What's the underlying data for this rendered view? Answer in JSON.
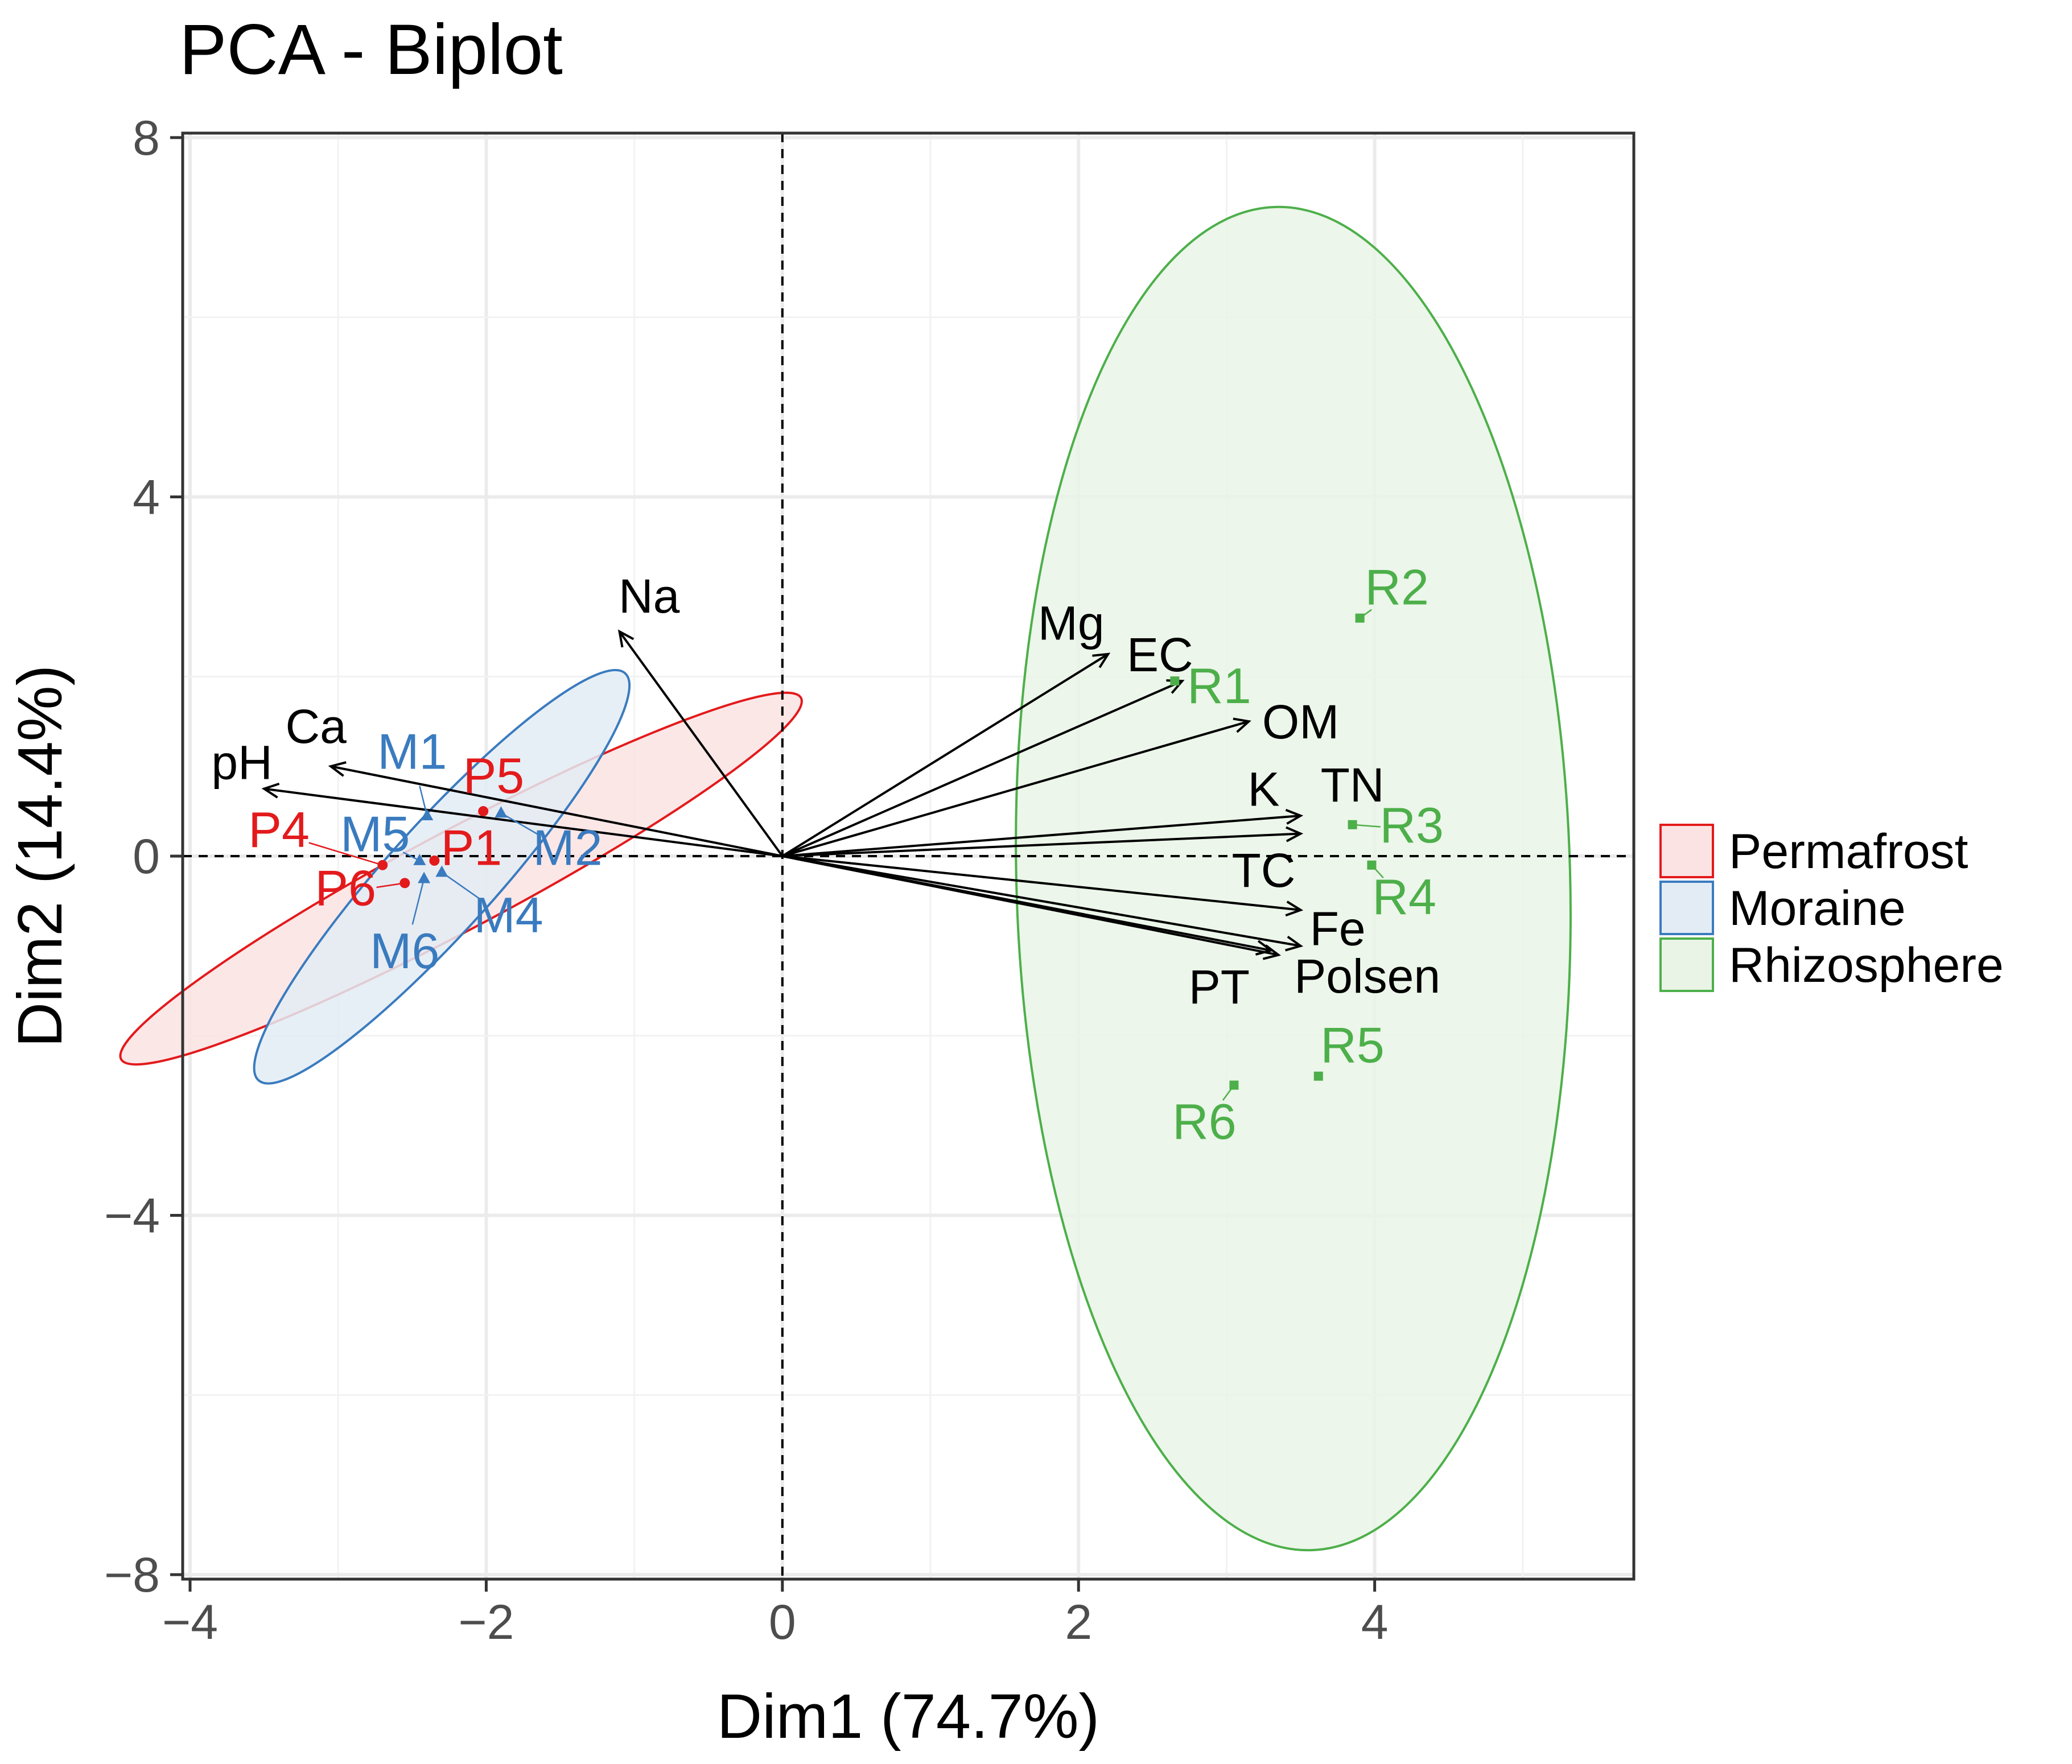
{
  "chart_data": {
    "type": "scatter",
    "subtype": "pca-biplot",
    "title": "PCA - Biplot",
    "xlabel": "Dim1 (74.7%)",
    "ylabel": "Dim2 (14.4%)",
    "xlim": [
      -4.05,
      5.75
    ],
    "ylim": [
      -8.05,
      8.05
    ],
    "x_ticks": [
      -4,
      -2,
      0,
      2,
      4
    ],
    "y_ticks": [
      -8,
      -4,
      0,
      4,
      8
    ],
    "x_tick_labels": [
      "−4",
      "−2",
      "0",
      "2",
      "4"
    ],
    "y_tick_labels": [
      "−8",
      "−4",
      "0",
      "4",
      "8"
    ],
    "grid": true,
    "legend_position": "right",
    "groups": [
      {
        "name": "Permafrost",
        "color": "#e31a1c",
        "fill": "#fbe3e3",
        "marker": "circle",
        "ellipse": {
          "cx": -2.17,
          "cy": -0.25,
          "rx": 2.6,
          "ry": 0.55,
          "angle_deg": 28
        },
        "points": [
          {
            "label": "P1",
            "x": -2.35,
            "y": -0.05,
            "lx": -2.1,
            "ly": 0.05
          },
          {
            "label": "P4",
            "x": -2.7,
            "y": -0.1,
            "lx": -3.4,
            "ly": 0.25
          },
          {
            "label": "P5",
            "x": -2.02,
            "y": 0.5,
            "lx": -1.95,
            "ly": 0.85
          },
          {
            "label": "P6",
            "x": -2.55,
            "y": -0.3,
            "lx": -2.95,
            "ly": -0.4
          }
        ]
      },
      {
        "name": "Moraine",
        "color": "#3a7bbf",
        "fill": "#e3ecf5",
        "marker": "triangle",
        "ellipse": {
          "cx": -2.3,
          "cy": -0.23,
          "rx": 1.85,
          "ry": 0.6,
          "angle_deg": 48
        },
        "points": [
          {
            "label": "M1",
            "x": -2.4,
            "y": 0.45,
            "lx": -2.5,
            "ly": 1.12
          },
          {
            "label": "M2",
            "x": -1.9,
            "y": 0.48,
            "lx": -1.45,
            "ly": 0.05
          },
          {
            "label": "M4",
            "x": -2.3,
            "y": -0.18,
            "lx": -1.85,
            "ly": -0.7
          },
          {
            "label": "M5",
            "x": -2.45,
            "y": -0.05,
            "lx": -2.75,
            "ly": 0.2
          },
          {
            "label": "M6",
            "x": -2.42,
            "y": -0.25,
            "lx": -2.55,
            "ly": -1.1
          }
        ]
      },
      {
        "name": "Rhizosphere",
        "color": "#4daf4a",
        "fill": "#e9f4e6",
        "marker": "square",
        "ellipse": {
          "cx": 3.45,
          "cy": -0.25,
          "rx": 1.87,
          "ry": 7.48,
          "angle_deg": 1.5
        },
        "points": [
          {
            "label": "R1",
            "x": 2.65,
            "y": 1.95,
            "lx": 2.95,
            "ly": 1.85
          },
          {
            "label": "R2",
            "x": 3.9,
            "y": 2.65,
            "lx": 4.15,
            "ly": 2.95
          },
          {
            "label": "R3",
            "x": 3.85,
            "y": 0.35,
            "lx": 4.25,
            "ly": 0.3
          },
          {
            "label": "R4",
            "x": 3.98,
            "y": -0.1,
            "lx": 4.2,
            "ly": -0.5
          },
          {
            "label": "R5",
            "x": 3.62,
            "y": -2.45,
            "lx": 3.85,
            "ly": -2.15
          },
          {
            "label": "R6",
            "x": 3.05,
            "y": -2.55,
            "lx": 2.85,
            "ly": -3.0
          }
        ]
      }
    ],
    "variables": [
      {
        "name": "Na",
        "x": -1.1,
        "y": 2.5,
        "lx": -0.9,
        "ly": 2.85
      },
      {
        "name": "Ca",
        "x": -3.05,
        "y": 1.0,
        "lx": -3.15,
        "ly": 1.4
      },
      {
        "name": "pH",
        "x": -3.5,
        "y": 0.75,
        "lx": -3.65,
        "ly": 1.0
      },
      {
        "name": "Mg",
        "x": 2.2,
        "y": 2.25,
        "lx": 1.95,
        "ly": 2.55
      },
      {
        "name": "EC",
        "x": 2.7,
        "y": 1.95,
        "lx": 2.55,
        "ly": 2.2
      },
      {
        "name": "OM",
        "x": 3.15,
        "y": 1.5,
        "lx": 3.5,
        "ly": 1.45
      },
      {
        "name": "K",
        "x": 3.5,
        "y": 0.45,
        "lx": 3.25,
        "ly": 0.7
      },
      {
        "name": "TN",
        "x": 3.5,
        "y": 0.25,
        "lx": 3.85,
        "ly": 0.75
      },
      {
        "name": "TC",
        "x": 3.5,
        "y": -0.6,
        "lx": 3.25,
        "ly": -0.2
      },
      {
        "name": "Fe",
        "x": 3.5,
        "y": -1.0,
        "lx": 3.75,
        "ly": -0.85
      },
      {
        "name": "Polsen",
        "x": 3.35,
        "y": -1.1,
        "lx": 3.95,
        "ly": -1.38
      },
      {
        "name": "PT",
        "x": 3.3,
        "y": -1.05,
        "lx": 2.95,
        "ly": -1.5
      }
    ]
  }
}
